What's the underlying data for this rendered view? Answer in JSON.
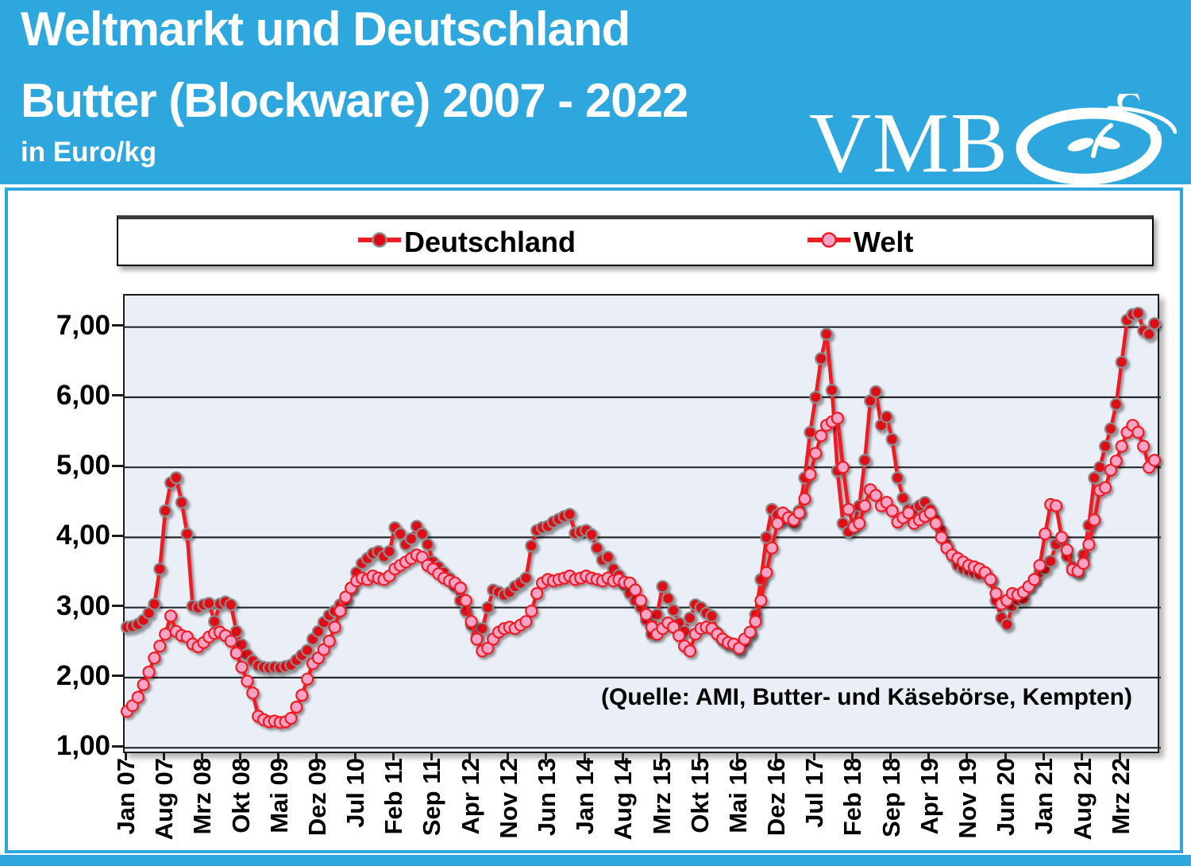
{
  "header": {
    "title_line1": "Weltmarkt und Deutschland",
    "title_line2": "Butter (Blockware) 2007 - 2022",
    "unit_label": "in Euro/kg",
    "logo_text": "VMB"
  },
  "legend": {
    "items": [
      {
        "label": "Deutschland"
      },
      {
        "label": "Welt"
      }
    ]
  },
  "annotation": {
    "source_note": "(Quelle: AMI, Butter- und Käsebörse, Kempten)"
  },
  "colors": {
    "header_bg": "#2EA7DE",
    "line_red": "#EE1C23",
    "deutschland_marker_fill": "#DF0713",
    "deutschland_marker_outline": "#8C8C8C",
    "welt_marker_fill": "#FAA3C7",
    "welt_marker_outline": "#EE1C23",
    "plot_bg": "#EAEEF6",
    "gridline": "#26282C"
  },
  "chart_data": {
    "type": "line",
    "title": "Weltmarkt und Deutschland Butter (Blockware) 2007 - 2022",
    "ylabel": "Euro/kg",
    "x_unit": "month",
    "x_start": "Jan 2007",
    "x_end": "Sep 2022",
    "x_tick_every_months": 7,
    "x_tick_labels": [
      "Jan 07",
      "Aug 07",
      "Mrz 08",
      "Okt 08",
      "Mai 09",
      "Dez 09",
      "Jul 10",
      "Feb 11",
      "Sep 11",
      "Apr 12",
      "Nov 12",
      "Jun 13",
      "Jan 14",
      "Aug 14",
      "Mrz 15",
      "Okt 15",
      "Mai 16",
      "Dez 16",
      "Jul 17",
      "Feb 18",
      "Sep 18",
      "Apr 19",
      "Nov 19",
      "Jun 20",
      "Jan 21",
      "Aug 21",
      "Mrz 22"
    ],
    "y_tick_labels": [
      "7,00",
      "6,00",
      "5,00",
      "4,00",
      "3,00",
      "2,00",
      "1,00"
    ],
    "ylim": [
      0.9,
      7.45
    ],
    "grid": "horizontal",
    "legend_position": "top",
    "series": [
      {
        "name": "Deutschland",
        "line_color": "#EE1C23",
        "marker_color": "#DF0713",
        "marker_outline": "#8C8C8C",
        "values": [
          2.72,
          2.73,
          2.76,
          2.82,
          2.92,
          3.05,
          3.55,
          4.38,
          4.78,
          4.85,
          4.5,
          4.05,
          3.02,
          3.0,
          3.04,
          3.06,
          2.8,
          3.05,
          3.08,
          3.04,
          2.66,
          2.47,
          2.33,
          2.24,
          2.17,
          2.15,
          2.14,
          2.15,
          2.14,
          2.16,
          2.18,
          2.25,
          2.32,
          2.39,
          2.55,
          2.66,
          2.79,
          2.89,
          2.95,
          3.04,
          3.1,
          3.28,
          3.5,
          3.63,
          3.7,
          3.77,
          3.8,
          3.73,
          3.8,
          4.14,
          4.05,
          3.9,
          3.98,
          4.16,
          4.05,
          3.9,
          3.65,
          3.58,
          3.5,
          3.42,
          3.3,
          3.1,
          2.95,
          2.75,
          2.62,
          2.7,
          3.0,
          3.25,
          3.22,
          3.18,
          3.22,
          3.3,
          3.35,
          3.42,
          3.88,
          4.1,
          4.14,
          4.16,
          4.22,
          4.26,
          4.3,
          4.33,
          4.06,
          4.08,
          4.1,
          4.04,
          3.85,
          3.68,
          3.72,
          3.55,
          3.46,
          3.32,
          3.2,
          3.1,
          3.0,
          2.82,
          2.62,
          2.9,
          3.3,
          3.13,
          2.96,
          2.78,
          2.66,
          2.85,
          3.04,
          3.0,
          2.92,
          2.88,
          2.64,
          2.53,
          2.47,
          2.45,
          2.39,
          2.5,
          2.62,
          2.9,
          3.4,
          4.0,
          4.4,
          4.32,
          4.25,
          4.3,
          4.2,
          4.38,
          4.85,
          5.5,
          6.0,
          6.55,
          6.9,
          6.1,
          4.95,
          4.2,
          4.08,
          4.18,
          4.45,
          5.1,
          5.95,
          6.08,
          5.6,
          5.72,
          5.4,
          4.85,
          4.56,
          4.4,
          4.4,
          4.45,
          4.5,
          4.4,
          4.25,
          4.1,
          3.9,
          3.74,
          3.6,
          3.55,
          3.52,
          3.49,
          3.47,
          3.49,
          3.4,
          3.1,
          2.85,
          2.76,
          3.02,
          3.1,
          3.12,
          3.3,
          3.4,
          3.5,
          3.55,
          3.66,
          3.9,
          3.98,
          3.73,
          3.58,
          3.5,
          3.75,
          4.17,
          4.85,
          5.0,
          5.3,
          5.55,
          5.9,
          6.5,
          7.1,
          7.18,
          7.2,
          6.95,
          6.9,
          7.05
        ]
      },
      {
        "name": "Welt",
        "line_color": "#EE1C23",
        "marker_color": "#FAA3C7",
        "marker_outline": "#EE1C23",
        "values": [
          1.52,
          1.6,
          1.72,
          1.9,
          2.08,
          2.28,
          2.45,
          2.62,
          2.88,
          2.66,
          2.6,
          2.58,
          2.48,
          2.44,
          2.5,
          2.58,
          2.63,
          2.65,
          2.6,
          2.52,
          2.35,
          2.15,
          1.95,
          1.78,
          1.45,
          1.4,
          1.37,
          1.38,
          1.36,
          1.37,
          1.42,
          1.58,
          1.75,
          1.98,
          2.2,
          2.28,
          2.4,
          2.52,
          2.72,
          2.95,
          3.15,
          3.28,
          3.38,
          3.42,
          3.4,
          3.45,
          3.42,
          3.4,
          3.45,
          3.55,
          3.6,
          3.65,
          3.7,
          3.75,
          3.72,
          3.6,
          3.55,
          3.48,
          3.42,
          3.38,
          3.35,
          3.28,
          3.1,
          2.8,
          2.55,
          2.38,
          2.42,
          2.55,
          2.65,
          2.7,
          2.72,
          2.7,
          2.75,
          2.8,
          2.95,
          3.2,
          3.35,
          3.4,
          3.38,
          3.4,
          3.42,
          3.45,
          3.4,
          3.42,
          3.45,
          3.42,
          3.4,
          3.38,
          3.42,
          3.38,
          3.4,
          3.36,
          3.35,
          3.25,
          3.1,
          2.9,
          2.72,
          2.62,
          2.7,
          2.78,
          2.72,
          2.6,
          2.45,
          2.38,
          2.62,
          2.7,
          2.72,
          2.7,
          2.62,
          2.55,
          2.5,
          2.48,
          2.42,
          2.55,
          2.65,
          2.8,
          3.1,
          3.5,
          3.85,
          4.2,
          4.35,
          4.28,
          4.25,
          4.35,
          4.55,
          4.9,
          5.2,
          5.45,
          5.6,
          5.65,
          5.7,
          5.0,
          4.4,
          4.15,
          4.2,
          4.45,
          4.68,
          4.6,
          4.45,
          4.5,
          4.38,
          4.22,
          4.28,
          4.35,
          4.2,
          4.25,
          4.3,
          4.35,
          4.2,
          4.0,
          3.85,
          3.75,
          3.7,
          3.65,
          3.6,
          3.58,
          3.55,
          3.5,
          3.4,
          3.2,
          3.05,
          3.1,
          3.2,
          3.18,
          3.22,
          3.3,
          3.4,
          3.6,
          4.05,
          4.47,
          4.45,
          4.0,
          3.82,
          3.54,
          3.52,
          3.63,
          3.9,
          4.25,
          4.67,
          4.71,
          4.96,
          5.09,
          5.3,
          5.5,
          5.6,
          5.5,
          5.3,
          5.0,
          5.1
        ]
      }
    ]
  }
}
